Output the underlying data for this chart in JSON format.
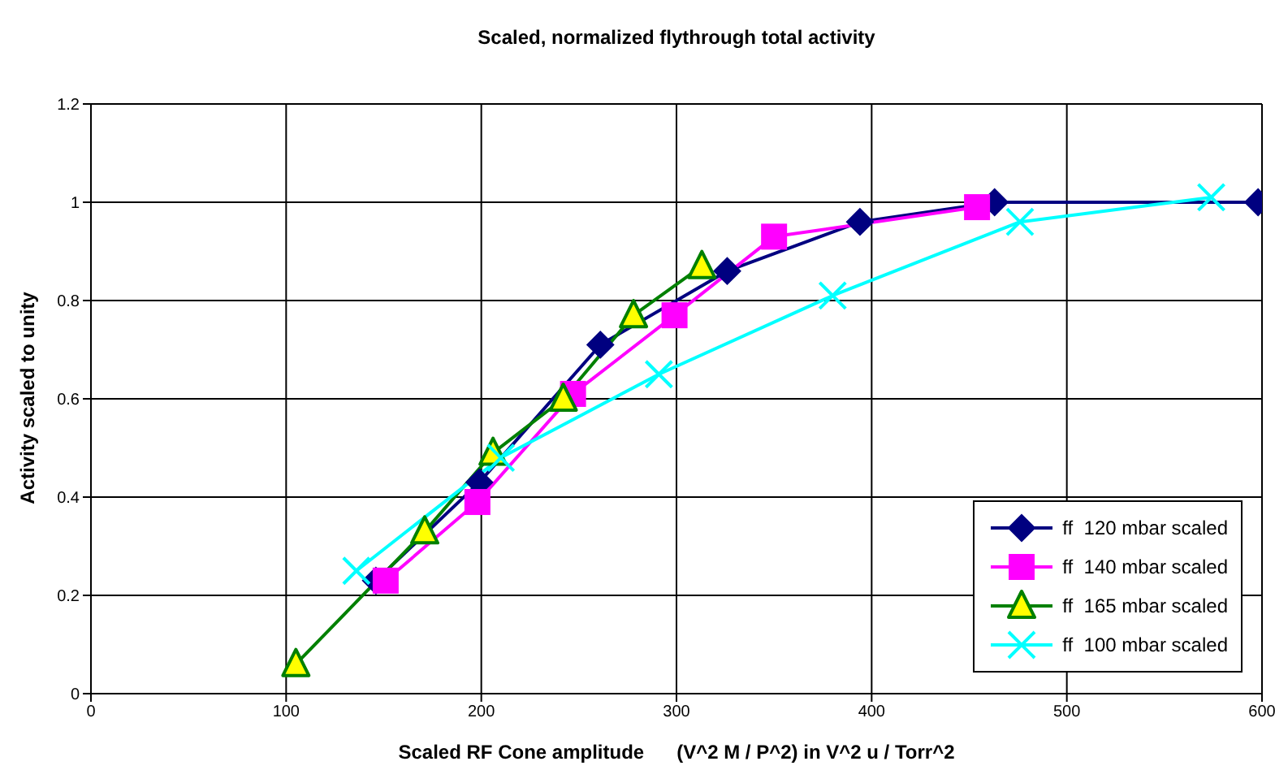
{
  "chart_data": {
    "type": "line",
    "title": "Scaled, normalized flythrough total activity",
    "xlabel": "Scaled RF Cone amplitude      (V^2 M / P^2) in V^2 u / Torr^2",
    "ylabel": "Activity scaled to unity",
    "xlim": [
      0,
      600
    ],
    "xticks": [
      0,
      100,
      200,
      300,
      400,
      500,
      600
    ],
    "ylim": [
      0,
      1.2
    ],
    "yticks": [
      0,
      0.2,
      0.4,
      0.6,
      0.8,
      1,
      1.2
    ],
    "grid": true,
    "legend": "bottom right",
    "line_style": "solid",
    "series": [
      {
        "name": "ff  120 mbar scaled",
        "color": "#000080",
        "marker": "diamond",
        "x": [
          146,
          199,
          261,
          326,
          394,
          463,
          598
        ],
        "values": [
          0.23,
          0.43,
          0.71,
          0.86,
          0.96,
          1.0,
          1.0
        ]
      },
      {
        "name": "ff  140 mbar scaled",
        "color": "#ff00ff",
        "marker": "square",
        "x": [
          151,
          198,
          247,
          299,
          350,
          454
        ],
        "values": [
          0.23,
          0.39,
          0.61,
          0.77,
          0.93,
          0.99
        ]
      },
      {
        "name": "ff  165 mbar scaled",
        "color": "#008000",
        "marker": "triangle",
        "x": [
          105,
          171,
          206,
          242,
          278,
          313
        ],
        "values": [
          0.06,
          0.33,
          0.49,
          0.6,
          0.77,
          0.87
        ]
      },
      {
        "name": "ff  100 mbar scaled",
        "color": "#00ffff",
        "marker": "cross",
        "x": [
          136,
          210,
          291,
          380,
          476,
          574
        ],
        "values": [
          0.25,
          0.48,
          0.65,
          0.81,
          0.96,
          1.01
        ]
      }
    ]
  }
}
